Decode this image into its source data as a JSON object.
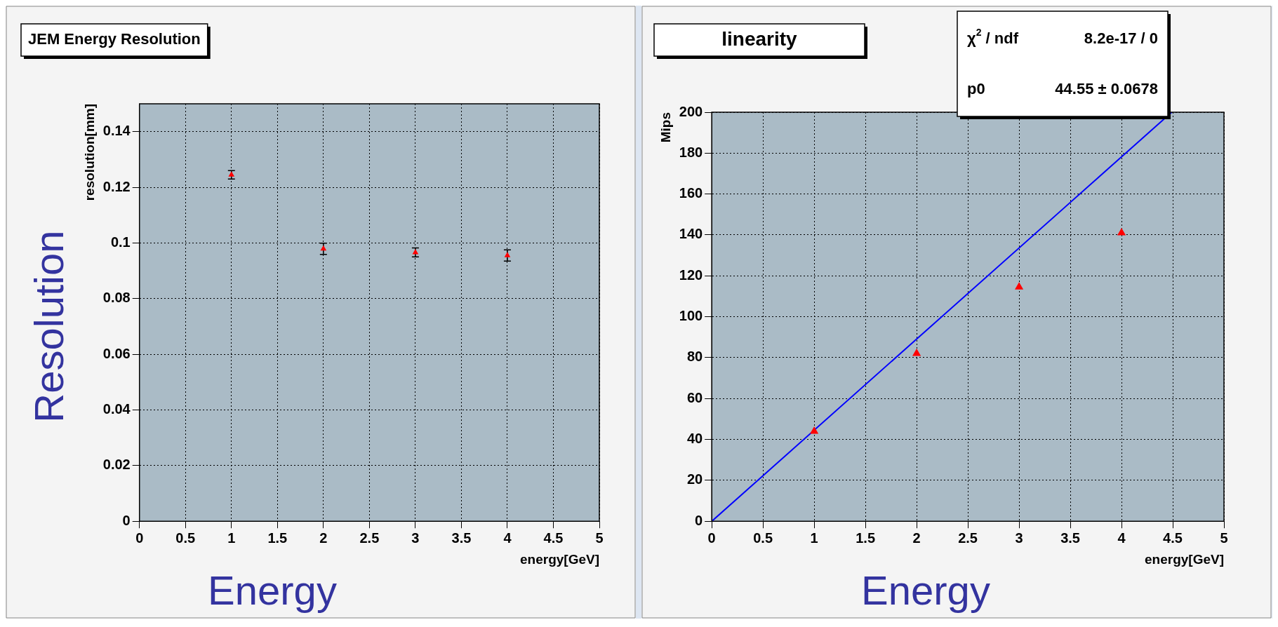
{
  "chart_data": [
    {
      "type": "scatter",
      "title": "JEM Energy Resolution",
      "xlabel": "energy[GeV]",
      "ylabel": "resolution[mm]",
      "x": [
        1,
        2,
        3,
        4
      ],
      "values": [
        0.1245,
        0.0979,
        0.0966,
        0.0955
      ],
      "errors": [
        0.0015,
        0.002,
        0.0016,
        0.002
      ],
      "color": "#ff0000",
      "marker": "triangle",
      "xlim": [
        0,
        5
      ],
      "xticks": [
        0,
        0.5,
        1,
        1.5,
        2,
        2.5,
        3,
        3.5,
        4,
        4.5,
        5
      ],
      "ylim": [
        0,
        0.15
      ],
      "yticks": [
        0,
        0.02,
        0.04,
        0.06,
        0.08,
        0.1,
        0.12,
        0.14
      ],
      "grid": true,
      "legend": false,
      "annotations": [
        "Resolution",
        "Energy"
      ]
    },
    {
      "type": "scatter",
      "title": "linearity",
      "xlabel": "energy[GeV]",
      "ylabel": "Mips",
      "series": [
        {
          "type": "scatter",
          "color": "#ff0000",
          "marker": "triangle",
          "x": [
            1,
            2,
            3,
            4
          ],
          "values": [
            44,
            82,
            114.5,
            141
          ]
        },
        {
          "type": "line",
          "color": "#0000ff",
          "marker": "none",
          "x": [
            0,
            4.49
          ],
          "values": [
            0,
            200
          ]
        }
      ],
      "xlim": [
        0,
        5
      ],
      "xticks": [
        0,
        0.5,
        1,
        1.5,
        2,
        2.5,
        3,
        3.5,
        4,
        4.5,
        5
      ],
      "ylim": [
        0,
        200
      ],
      "yticks": [
        0,
        20,
        40,
        60,
        80,
        100,
        120,
        140,
        160,
        180,
        200
      ],
      "grid": true,
      "legend": false,
      "annotations": [
        "χ$^{2}$ / ndf",
        "8.2e-17 / 0",
        "p0",
        "44.55 ± 0.0678",
        "Energy"
      ]
    }
  ]
}
